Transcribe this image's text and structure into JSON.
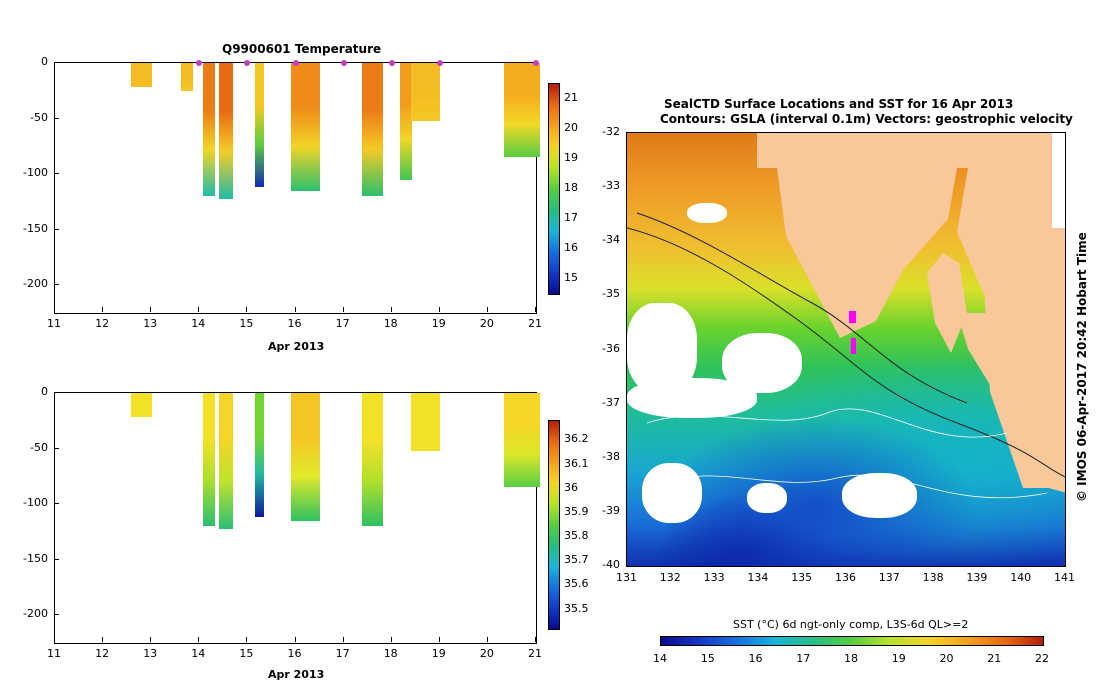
{
  "chart_data": [
    {
      "type": "heatmap",
      "title": "Q9900601  Temperature",
      "xlabel": "Apr 2013",
      "ylabel": "",
      "xticks": [
        "11",
        "12",
        "13",
        "14",
        "15",
        "16",
        "17",
        "18",
        "19",
        "20",
        "21"
      ],
      "yticks": [
        "0",
        "-50",
        "-100",
        "-150",
        "-200"
      ],
      "xlim": [
        11,
        21
      ],
      "ylim": [
        -225,
        0
      ],
      "colorbar": {
        "ticks": [
          "21",
          "20",
          "19",
          "18",
          "17",
          "16",
          "15"
        ],
        "range": [
          14.5,
          21.5
        ]
      },
      "profiles": [
        {
          "t": 12.8,
          "w": 0.45,
          "depth": -22,
          "surface_value": 19.8,
          "deep_value": 19.8
        },
        {
          "t": 13.75,
          "w": 0.25,
          "depth": -25,
          "surface_value": 19.8,
          "deep_value": 19.6
        },
        {
          "t": 14.2,
          "w": 0.25,
          "depth": -120,
          "surface_value": 20.6,
          "deep_value": 17.0
        },
        {
          "t": 14.55,
          "w": 0.3,
          "depth": -122,
          "surface_value": 20.8,
          "deep_value": 17.0
        },
        {
          "t": 15.25,
          "w": 0.2,
          "depth": -112,
          "surface_value": 19.6,
          "deep_value": 15.0
        },
        {
          "t": 16.2,
          "w": 0.6,
          "depth": -115,
          "surface_value": 20.4,
          "deep_value": 17.5
        },
        {
          "t": 17.6,
          "w": 0.45,
          "depth": -120,
          "surface_value": 20.6,
          "deep_value": 17.5
        },
        {
          "t": 18.3,
          "w": 0.25,
          "depth": -105,
          "surface_value": 20.2,
          "deep_value": 17.8
        },
        {
          "t": 18.7,
          "w": 0.6,
          "depth": -52,
          "surface_value": 19.8,
          "deep_value": 19.6
        },
        {
          "t": 20.7,
          "w": 0.75,
          "depth": -85,
          "surface_value": 20.0,
          "deep_value": 18.0
        }
      ],
      "markers_x": [
        14,
        15,
        16,
        17,
        18,
        19,
        21
      ]
    },
    {
      "type": "heatmap",
      "title": "",
      "xlabel": "Apr 2013",
      "ylabel": "",
      "xticks": [
        "11",
        "12",
        "13",
        "14",
        "15",
        "16",
        "17",
        "18",
        "19",
        "20",
        "21"
      ],
      "yticks": [
        "0",
        "-50",
        "-100",
        "-150",
        "-200"
      ],
      "xlim": [
        11,
        21
      ],
      "ylim": [
        -225,
        0
      ],
      "colorbar": {
        "ticks": [
          "36.2",
          "36.1",
          "36",
          "35.9",
          "35.8",
          "35.7",
          "35.6",
          "35.5"
        ],
        "range": [
          35.42,
          36.28
        ]
      },
      "profiles": [
        {
          "t": 12.8,
          "w": 0.45,
          "depth": -22,
          "surface_value": 36.0,
          "deep_value": 36.0
        },
        {
          "t": 14.2,
          "w": 0.25,
          "depth": -120,
          "surface_value": 36.0,
          "deep_value": 35.78
        },
        {
          "t": 14.55,
          "w": 0.3,
          "depth": -122,
          "surface_value": 36.02,
          "deep_value": 35.78
        },
        {
          "t": 15.25,
          "w": 0.2,
          "depth": -112,
          "surface_value": 35.88,
          "deep_value": 35.45
        },
        {
          "t": 16.2,
          "w": 0.6,
          "depth": -115,
          "surface_value": 36.05,
          "deep_value": 35.8
        },
        {
          "t": 17.6,
          "w": 0.45,
          "depth": -120,
          "surface_value": 36.0,
          "deep_value": 35.8
        },
        {
          "t": 18.7,
          "w": 0.6,
          "depth": -52,
          "surface_value": 36.0,
          "deep_value": 36.0
        },
        {
          "t": 20.7,
          "w": 0.75,
          "depth": -85,
          "surface_value": 36.02,
          "deep_value": 35.85
        }
      ]
    },
    {
      "type": "heatmap",
      "title_line1": "SealCTD Surface Locations and SST for 16 Apr 2013",
      "title_line2": "Contours: GSLA (interval 0.1m) Vectors: geostrophic velocity",
      "xticks": [
        "131",
        "132",
        "133",
        "134",
        "135",
        "136",
        "137",
        "138",
        "139",
        "140",
        "141"
      ],
      "yticks": [
        "-32",
        "-33",
        "-34",
        "-35",
        "-36",
        "-37",
        "-38",
        "-39",
        "-40"
      ],
      "xlim": [
        131,
        141
      ],
      "ylim": [
        -40,
        -32
      ],
      "side_label": "© IMOS 06-Apr-2017 20:42 Hobart Time",
      "colorbar": {
        "label": "SST (°C) 6d ngt-only comp, L3S-6d QL>=2",
        "ticks": [
          "14",
          "15",
          "16",
          "17",
          "18",
          "19",
          "20",
          "21",
          "22"
        ],
        "range": [
          14,
          22
        ]
      }
    }
  ]
}
